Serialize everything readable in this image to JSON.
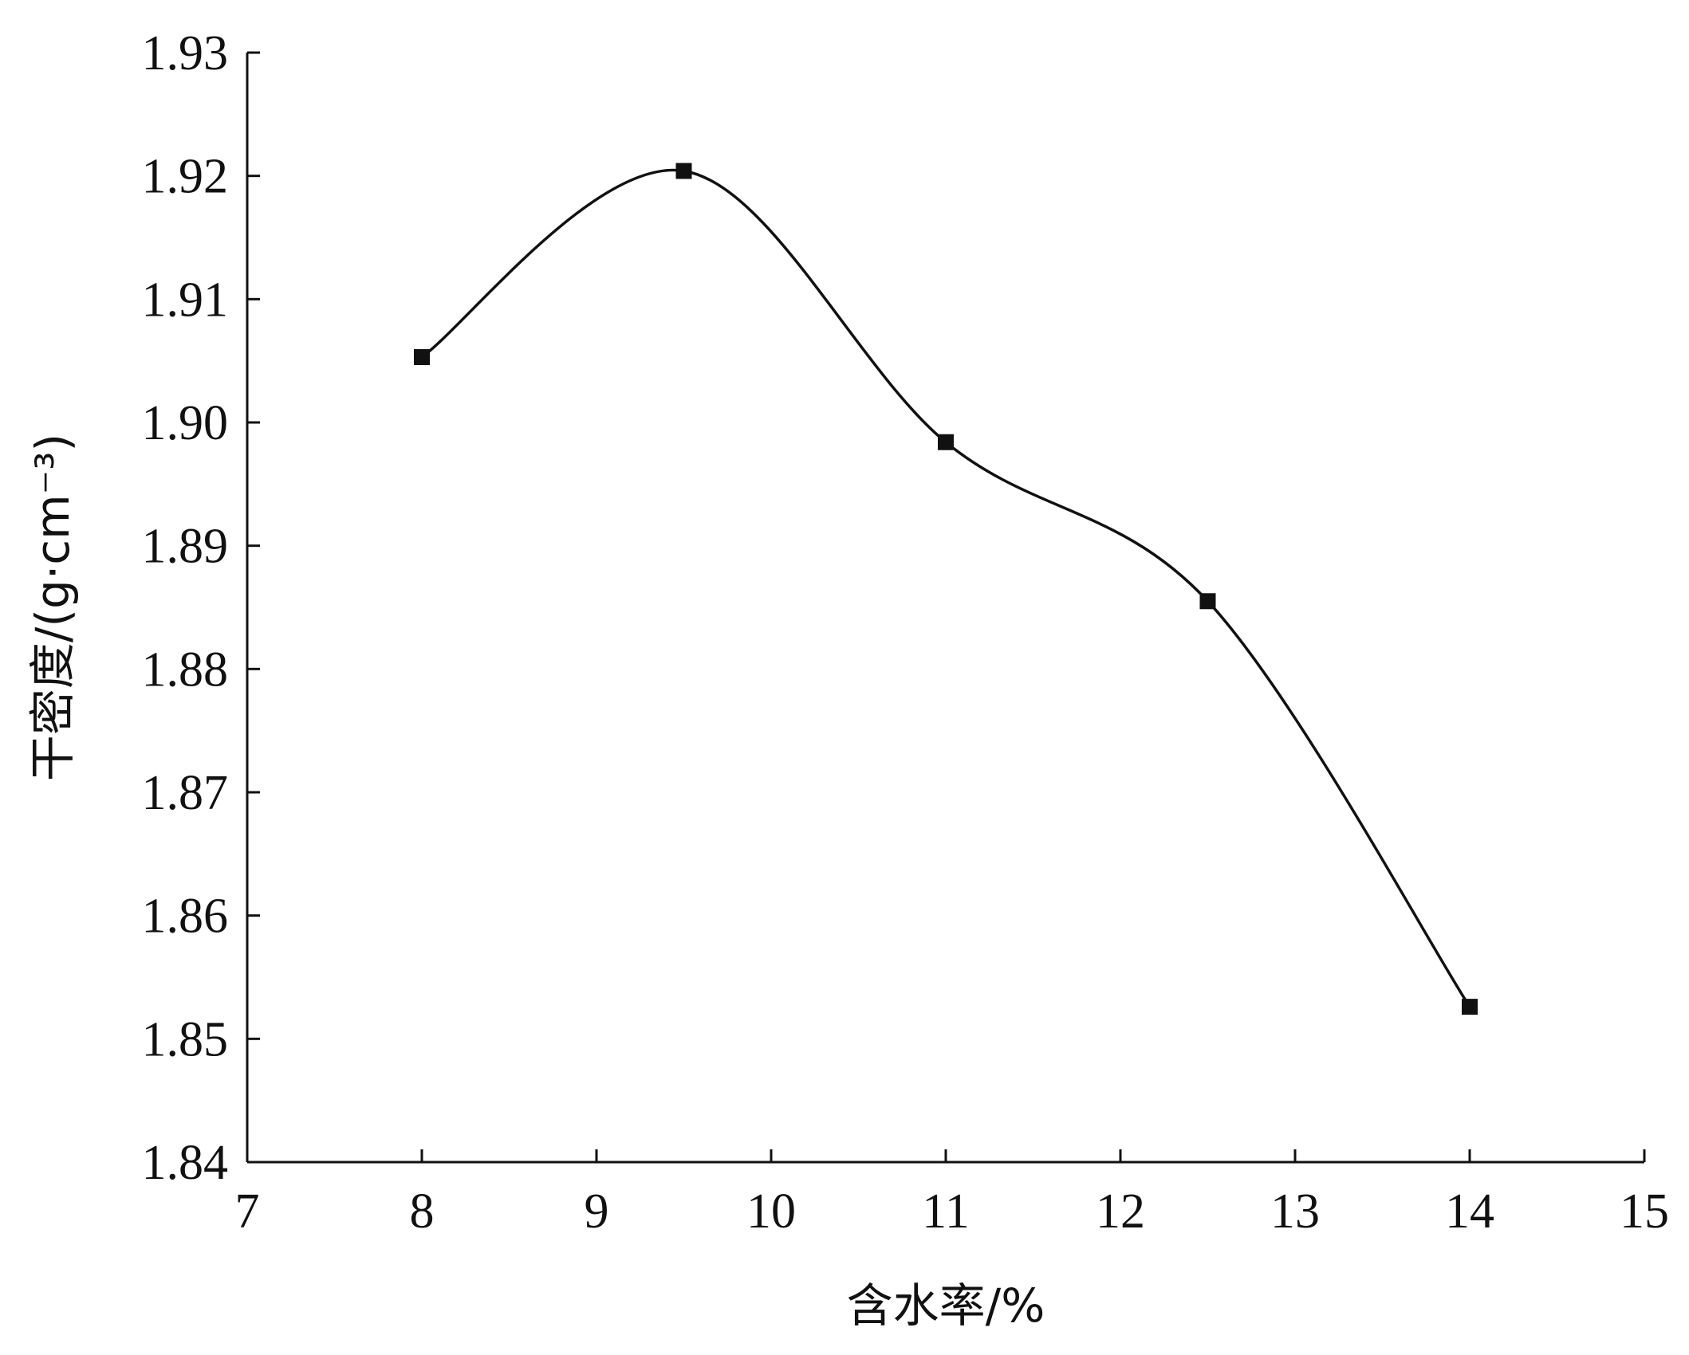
{
  "chart_data": {
    "type": "line",
    "xlabel": "含水率/%",
    "ylabel": "干密度/(g·cm⁻³)",
    "xlim": [
      7,
      15
    ],
    "ylim": [
      1.84,
      1.93
    ],
    "x_ticks": [
      "7",
      "8",
      "9",
      "10",
      "11",
      "12",
      "13",
      "14",
      "15"
    ],
    "y_ticks": [
      "1.84",
      "1.85",
      "1.86",
      "1.87",
      "1.88",
      "1.89",
      "1.90",
      "1.91",
      "1.92",
      "1.93"
    ],
    "grid": false,
    "smooth": true,
    "series": [
      {
        "x": [
          8.0,
          9.5,
          11.0,
          12.5,
          14.0
        ],
        "y": [
          1.9053,
          1.9204,
          1.8984,
          1.8855,
          1.8526
        ],
        "marker": "square",
        "color": "#111111"
      }
    ]
  }
}
